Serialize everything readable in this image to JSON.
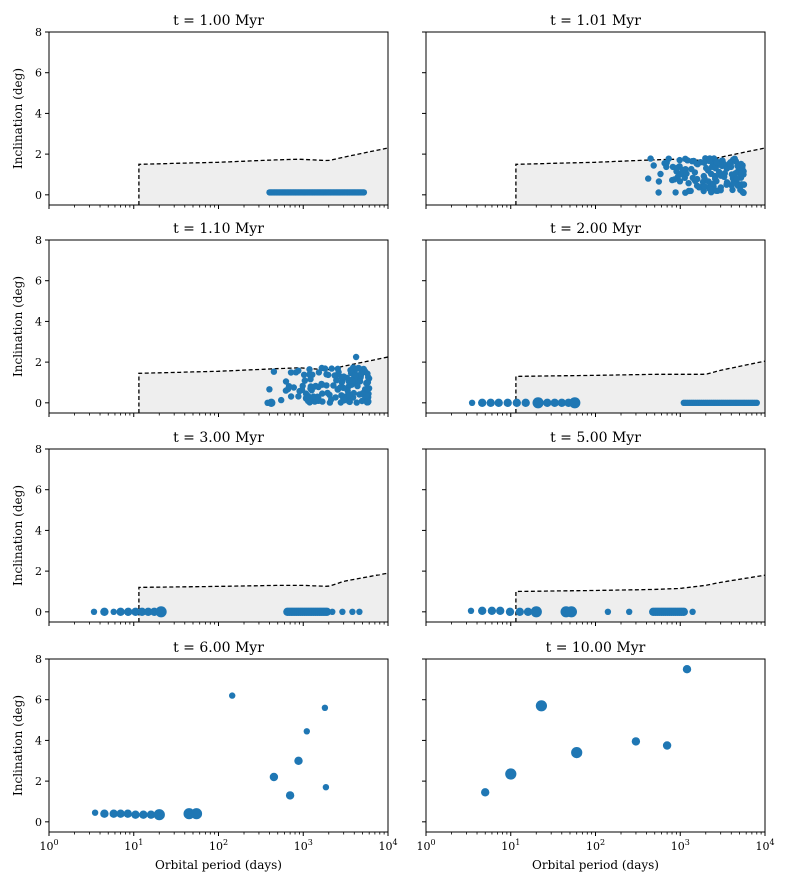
{
  "figure": {
    "xlabel": "Orbital period (days)",
    "ylabel": "Inclination (deg)",
    "y_tick_labels": [
      "0",
      "2",
      "4",
      "6",
      "8"
    ],
    "x_tick_labels": [
      {
        "base": "10",
        "exp": "0"
      },
      {
        "base": "10",
        "exp": "1"
      },
      {
        "base": "10",
        "exp": "2"
      },
      {
        "base": "10",
        "exp": "3"
      },
      {
        "base": "10",
        "exp": "4"
      }
    ]
  },
  "colors": {
    "points": "#1f77b4",
    "region_fill": "#eeeeee",
    "boundary_line": "#000000"
  },
  "chart_data": [
    {
      "type": "scatter",
      "title": "t = 1.00 Myr",
      "xscale": "log",
      "xlim": [
        1,
        10000
      ],
      "ylim": [
        -0.5,
        8
      ],
      "boundary": {
        "start_x": 11.5,
        "x": [
          11.5,
          100,
          500,
          900,
          2000,
          3000,
          10000
        ],
        "y": [
          1.5,
          1.6,
          1.72,
          1.75,
          1.68,
          1.85,
          2.3
        ]
      },
      "series": {
        "dense_uniform": {
          "xmin": 400,
          "xmax": 5200,
          "n": 90,
          "y": 0.12,
          "size": "small"
        }
      }
    },
    {
      "type": "scatter",
      "title": "t = 1.01 Myr",
      "xscale": "log",
      "xlim": [
        1,
        10000
      ],
      "ylim": [
        -0.5,
        8
      ],
      "boundary": {
        "start_x": 11.5,
        "x": [
          11.5,
          100,
          500,
          900,
          2000,
          3000,
          10000
        ],
        "y": [
          1.5,
          1.6,
          1.72,
          1.75,
          1.68,
          1.85,
          2.3
        ]
      },
      "series": {
        "random_cloud": {
          "xmin": 350,
          "xmax": 5800,
          "n": 130,
          "ymin": 0.1,
          "ymax": 1.8,
          "seed": 7,
          "size": "small"
        }
      }
    },
    {
      "type": "scatter",
      "title": "t = 1.10 Myr",
      "xscale": "log",
      "xlim": [
        1,
        10000
      ],
      "ylim": [
        -0.5,
        8
      ],
      "boundary": {
        "start_x": 11.5,
        "x": [
          11.5,
          100,
          500,
          900,
          2000,
          3000,
          10000
        ],
        "y": [
          1.45,
          1.55,
          1.68,
          1.72,
          1.62,
          1.8,
          2.25
        ]
      },
      "series": {
        "random_cloud": {
          "xmin": 330,
          "xmax": 6000,
          "n": 140,
          "ymin": 0.0,
          "ymax": 1.75,
          "seed": 13,
          "size": "small"
        },
        "points": [
          {
            "x": 380,
            "y": 0.0,
            "size": "small"
          },
          {
            "x": 420,
            "y": 0.0,
            "size": "medium"
          },
          {
            "x": 4200,
            "y": 2.25,
            "size": "small"
          }
        ]
      }
    },
    {
      "type": "scatter",
      "title": "t = 2.00 Myr",
      "xscale": "log",
      "xlim": [
        1,
        10000
      ],
      "ylim": [
        -0.5,
        8
      ],
      "boundary": {
        "start_x": 11.5,
        "x": [
          11.5,
          100,
          500,
          2000,
          3000,
          10000
        ],
        "y": [
          1.3,
          1.35,
          1.4,
          1.4,
          1.6,
          2.05
        ]
      },
      "series": {
        "dense_uniform": {
          "xmin": 1100,
          "xmax": 8000,
          "n": 38,
          "y": 0.0,
          "size": "small"
        },
        "points": [
          {
            "x": 3.5,
            "y": 0,
            "size": "small"
          },
          {
            "x": 4.6,
            "y": 0,
            "size": "medium"
          },
          {
            "x": 5.8,
            "y": 0,
            "size": "medium"
          },
          {
            "x": 7.2,
            "y": 0,
            "size": "medium"
          },
          {
            "x": 9.2,
            "y": 0,
            "size": "medium"
          },
          {
            "x": 11.8,
            "y": 0,
            "size": "medium"
          },
          {
            "x": 15,
            "y": 0,
            "size": "medium"
          },
          {
            "x": 21,
            "y": 0,
            "size": "large"
          },
          {
            "x": 27,
            "y": 0,
            "size": "medium"
          },
          {
            "x": 33,
            "y": 0,
            "size": "medium"
          },
          {
            "x": 40,
            "y": 0,
            "size": "medium"
          },
          {
            "x": 48,
            "y": 0,
            "size": "medium"
          },
          {
            "x": 57,
            "y": 0,
            "size": "large"
          }
        ]
      }
    },
    {
      "type": "scatter",
      "title": "t = 3.00 Myr",
      "xscale": "log",
      "xlim": [
        1,
        10000
      ],
      "ylim": [
        -0.5,
        8
      ],
      "boundary": {
        "start_x": 11.5,
        "x": [
          11.5,
          100,
          500,
          1000,
          2000,
          3000,
          10000
        ],
        "y": [
          1.2,
          1.25,
          1.3,
          1.3,
          1.25,
          1.5,
          1.9
        ]
      },
      "series": {
        "dense_uniform": {
          "xmin": 650,
          "xmax": 1900,
          "n": 22,
          "y": 0.0,
          "size": "medium"
        },
        "points": [
          {
            "x": 3.4,
            "y": 0,
            "size": "small"
          },
          {
            "x": 4.5,
            "y": 0,
            "size": "medium"
          },
          {
            "x": 5.8,
            "y": 0,
            "size": "small"
          },
          {
            "x": 7.0,
            "y": 0,
            "size": "medium"
          },
          {
            "x": 8.6,
            "y": 0,
            "size": "medium"
          },
          {
            "x": 10.5,
            "y": 0,
            "size": "medium"
          },
          {
            "x": 12.5,
            "y": 0,
            "size": "medium"
          },
          {
            "x": 14.8,
            "y": 0,
            "size": "medium"
          },
          {
            "x": 17.5,
            "y": 0,
            "size": "medium"
          },
          {
            "x": 21,
            "y": 0,
            "size": "large"
          },
          {
            "x": 2200,
            "y": 0,
            "size": "small"
          },
          {
            "x": 2900,
            "y": 0,
            "size": "small"
          },
          {
            "x": 3800,
            "y": 0,
            "size": "small"
          },
          {
            "x": 4600,
            "y": 0,
            "size": "small"
          }
        ]
      }
    },
    {
      "type": "scatter",
      "title": "t = 5.00 Myr",
      "xscale": "log",
      "xlim": [
        1,
        10000
      ],
      "ylim": [
        -0.5,
        8
      ],
      "boundary": {
        "start_x": 11.5,
        "x": [
          11.5,
          100,
          500,
          1000,
          2000,
          3000,
          10000
        ],
        "y": [
          1.0,
          1.05,
          1.1,
          1.15,
          1.3,
          1.45,
          1.8
        ]
      },
      "series": {
        "dense_uniform": {
          "xmin": 480,
          "xmax": 1100,
          "n": 16,
          "y": 0.0,
          "size": "medium"
        },
        "points": [
          {
            "x": 3.4,
            "y": 0.05,
            "size": "small"
          },
          {
            "x": 4.6,
            "y": 0.05,
            "size": "medium"
          },
          {
            "x": 6.0,
            "y": 0.05,
            "size": "medium"
          },
          {
            "x": 7.5,
            "y": 0.05,
            "size": "medium"
          },
          {
            "x": 9.8,
            "y": 0.0,
            "size": "medium"
          },
          {
            "x": 12.8,
            "y": 0.0,
            "size": "medium"
          },
          {
            "x": 16,
            "y": 0.0,
            "size": "medium"
          },
          {
            "x": 20,
            "y": 0.0,
            "size": "large"
          },
          {
            "x": 45,
            "y": 0.0,
            "size": "large"
          },
          {
            "x": 52,
            "y": 0.0,
            "size": "large"
          },
          {
            "x": 140,
            "y": 0.0,
            "size": "small"
          },
          {
            "x": 250,
            "y": 0.0,
            "size": "small"
          },
          {
            "x": 1400,
            "y": 0.0,
            "size": "small"
          }
        ]
      }
    },
    {
      "type": "scatter",
      "title": "t = 6.00 Myr",
      "xscale": "log",
      "xlim": [
        1,
        10000
      ],
      "ylim": [
        -0.5,
        8
      ],
      "series": {
        "points": [
          {
            "x": 3.5,
            "y": 0.45,
            "size": "small"
          },
          {
            "x": 4.5,
            "y": 0.4,
            "size": "medium"
          },
          {
            "x": 5.8,
            "y": 0.4,
            "size": "medium"
          },
          {
            "x": 7.0,
            "y": 0.4,
            "size": "medium"
          },
          {
            "x": 8.5,
            "y": 0.4,
            "size": "medium"
          },
          {
            "x": 10.5,
            "y": 0.35,
            "size": "medium"
          },
          {
            "x": 13,
            "y": 0.35,
            "size": "medium"
          },
          {
            "x": 16,
            "y": 0.35,
            "size": "medium"
          },
          {
            "x": 20,
            "y": 0.35,
            "size": "large"
          },
          {
            "x": 45,
            "y": 0.4,
            "size": "large"
          },
          {
            "x": 55,
            "y": 0.4,
            "size": "large"
          },
          {
            "x": 145,
            "y": 6.2,
            "size": "small"
          },
          {
            "x": 450,
            "y": 2.2,
            "size": "medium"
          },
          {
            "x": 700,
            "y": 1.3,
            "size": "medium"
          },
          {
            "x": 880,
            "y": 3.0,
            "size": "medium"
          },
          {
            "x": 1100,
            "y": 4.45,
            "size": "small"
          },
          {
            "x": 1800,
            "y": 5.6,
            "size": "small"
          },
          {
            "x": 1850,
            "y": 1.7,
            "size": "small"
          }
        ]
      }
    },
    {
      "type": "scatter",
      "title": "t = 10.00 Myr",
      "xscale": "log",
      "xlim": [
        1,
        10000
      ],
      "ylim": [
        -0.5,
        8
      ],
      "series": {
        "points": [
          {
            "x": 5.0,
            "y": 1.45,
            "size": "medium"
          },
          {
            "x": 10.0,
            "y": 2.35,
            "size": "large"
          },
          {
            "x": 23,
            "y": 5.7,
            "size": "large"
          },
          {
            "x": 60,
            "y": 3.4,
            "size": "large"
          },
          {
            "x": 300,
            "y": 3.95,
            "size": "medium"
          },
          {
            "x": 700,
            "y": 3.75,
            "size": "medium"
          },
          {
            "x": 1200,
            "y": 7.5,
            "size": "medium"
          }
        ]
      }
    }
  ]
}
